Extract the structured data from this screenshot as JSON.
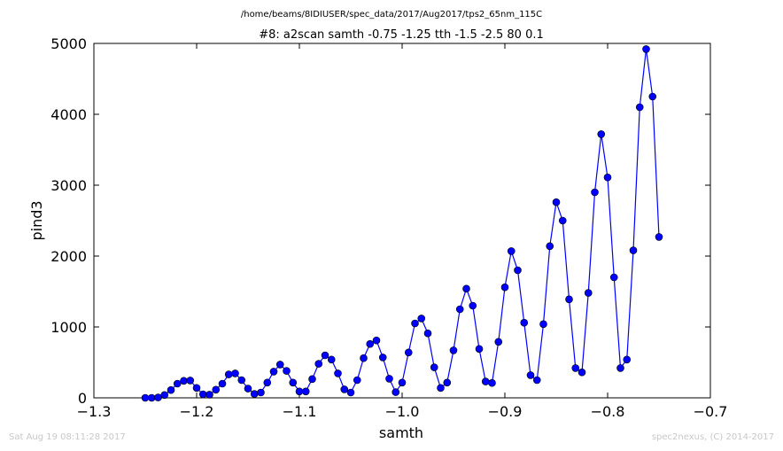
{
  "chart_data": {
    "type": "line",
    "suptitle": "/home/beams/8IDIUSER/spec_data/2017/Aug2017/tps2_65nm_115C",
    "title": "#8: a2scan  samth -0.75 -1.25  tth -1.5 -2.5  80 0.1",
    "xlabel": "samth",
    "ylabel": "pind3",
    "xlim": [
      -1.3,
      -0.7
    ],
    "ylim": [
      0,
      5000
    ],
    "xticks": [
      -1.3,
      -1.2,
      -1.1,
      -1.0,
      -0.9,
      -0.8,
      -0.7
    ],
    "xtick_labels": [
      "−1.3",
      "−1.2",
      "−1.1",
      "−1.0",
      "−0.9",
      "−0.8",
      "−0.7"
    ],
    "yticks": [
      0,
      1000,
      2000,
      3000,
      4000,
      5000
    ],
    "ytick_labels": [
      "0",
      "1000",
      "2000",
      "3000",
      "4000",
      "5000"
    ],
    "grid": false,
    "series": [
      {
        "color": "#0000ff",
        "marker": "circle",
        "x": [
          -1.25,
          -1.24375,
          -1.2375,
          -1.23125,
          -1.225,
          -1.21875,
          -1.2125,
          -1.20625,
          -1.2,
          -1.19375,
          -1.1875,
          -1.18125,
          -1.175,
          -1.16875,
          -1.1625,
          -1.15625,
          -1.15,
          -1.14375,
          -1.1375,
          -1.13125,
          -1.125,
          -1.11875,
          -1.1125,
          -1.10625,
          -1.1,
          -1.09375,
          -1.0875,
          -1.08125,
          -1.075,
          -1.06875,
          -1.0625,
          -1.05625,
          -1.05,
          -1.04375,
          -1.0375,
          -1.03125,
          -1.025,
          -1.01875,
          -1.0125,
          -1.00625,
          -1.0,
          -0.99375,
          -0.9875,
          -0.98125,
          -0.975,
          -0.96875,
          -0.9625,
          -0.95625,
          -0.95,
          -0.94375,
          -0.9375,
          -0.93125,
          -0.925,
          -0.91875,
          -0.9125,
          -0.90625,
          -0.9,
          -0.89375,
          -0.8875,
          -0.88125,
          -0.875,
          -0.86875,
          -0.8625,
          -0.85625,
          -0.85,
          -0.84375,
          -0.8375,
          -0.83125,
          -0.825,
          -0.81875,
          -0.8125,
          -0.80625,
          -0.8,
          -0.79375,
          -0.7875,
          -0.78125,
          -0.775,
          -0.76875,
          -0.7625,
          -0.75625,
          -0.75
        ],
        "y": [
          0,
          0,
          5,
          40,
          110,
          200,
          240,
          245,
          140,
          50,
          45,
          115,
          200,
          330,
          345,
          250,
          130,
          55,
          75,
          215,
          370,
          470,
          380,
          215,
          90,
          90,
          265,
          480,
          600,
          540,
          345,
          120,
          75,
          250,
          560,
          760,
          810,
          570,
          270,
          80,
          215,
          640,
          1050,
          1120,
          910,
          430,
          140,
          215,
          670,
          1250,
          1540,
          1300,
          690,
          230,
          210,
          790,
          1560,
          2070,
          1800,
          1060,
          320,
          250,
          1040,
          2140,
          2760,
          2500,
          1390,
          420,
          360,
          1480,
          2900,
          3720,
          3110,
          1700,
          420,
          540,
          2080,
          4100,
          4920,
          4250,
          2270
        ]
      }
    ]
  },
  "footer": {
    "timestamp": "Sat Aug 19 08:11:28 2017",
    "credit": "spec2nexus, (C) 2014-2017"
  }
}
